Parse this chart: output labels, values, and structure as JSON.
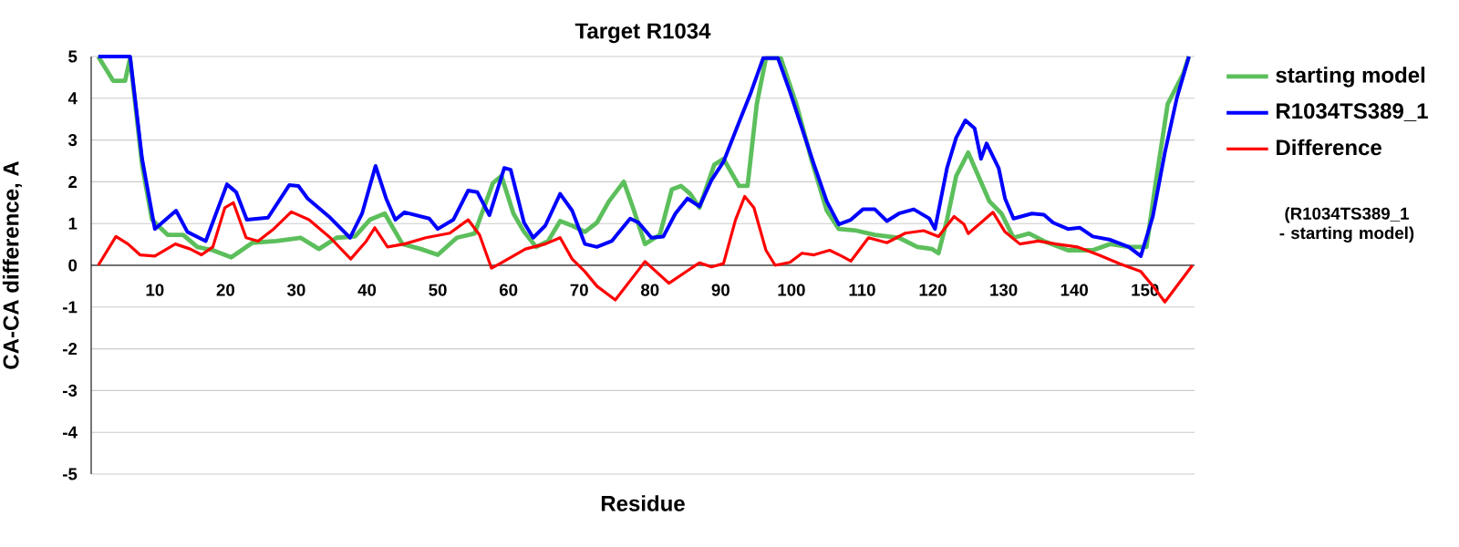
{
  "chart_data": {
    "type": "line",
    "title": "Target R1034",
    "xlabel": "Residue",
    "ylabel": "CA-CA difference, A",
    "xlim": [
      1,
      157
    ],
    "xticks": [
      10,
      20,
      30,
      40,
      50,
      60,
      70,
      80,
      90,
      100,
      110,
      120,
      130,
      140,
      150
    ],
    "ylim": [
      -5,
      5
    ],
    "yticks": [
      -5,
      -4,
      -3,
      -2,
      -1,
      0,
      1,
      2,
      3,
      4,
      5
    ],
    "grid": "y",
    "legend": "right",
    "annotations": [
      "(R1034TS389_1 - starting model)"
    ],
    "series": [
      {
        "name": "starting model",
        "color": "#5cbf5c",
        "x": [
          2,
          4.1,
          5.8,
          6.5,
          8.2,
          9.6,
          11.8,
          14,
          16,
          18.2,
          20.8,
          23.8,
          27.2,
          30.6,
          33.2,
          35.7,
          38.3,
          40.4,
          42.5,
          45,
          47.6,
          50,
          52.7,
          55.2,
          57.8,
          59,
          60.7,
          62.2,
          63.9,
          65.6,
          67.3,
          69,
          70.8,
          72.5,
          74.2,
          76.3,
          77.6,
          79.3,
          81.4,
          83.1,
          84.4,
          85.7,
          87,
          89.1,
          90.4,
          92.6,
          93.8,
          95.1,
          96.4,
          98.5,
          100.7,
          102.8,
          105,
          106.7,
          109.2,
          111.8,
          115.2,
          117.8,
          119.9,
          120.8,
          122,
          123.3,
          125,
          126.3,
          128,
          129.7,
          131.4,
          133.6,
          135.7,
          139.1,
          142.6,
          145.1,
          147.7,
          150.2,
          151.5,
          153.2,
          155.4,
          156.2
        ],
        "values": [
          5,
          4.42,
          4.42,
          4.96,
          2.4,
          1.09,
          0.73,
          0.73,
          0.44,
          0.36,
          0.19,
          0.54,
          0.58,
          0.66,
          0.39,
          0.66,
          0.69,
          1.09,
          1.24,
          0.51,
          0.39,
          0.25,
          0.66,
          0.76,
          1.97,
          2.14,
          1.24,
          0.8,
          0.44,
          0.58,
          1.06,
          0.95,
          0.8,
          1.02,
          1.53,
          2.0,
          1.38,
          0.51,
          0.73,
          1.82,
          1.9,
          1.71,
          1.38,
          2.41,
          2.55,
          1.9,
          1.9,
          3.86,
          4.96,
          4.96,
          3.86,
          2.55,
          1.31,
          0.87,
          0.83,
          0.73,
          0.66,
          0.44,
          0.39,
          0.29,
          1.09,
          2.14,
          2.7,
          2.19,
          1.53,
          1.24,
          0.66,
          0.76,
          0.58,
          0.36,
          0.36,
          0.51,
          0.44,
          0.44,
          1.97,
          3.86,
          4.59,
          5
        ]
      },
      {
        "name": "R1034TS389_1",
        "color": "#0000ff",
        "x": [
          2,
          6.5,
          8.2,
          10,
          13,
          14.6,
          17.2,
          20.2,
          21.5,
          23,
          26,
          29,
          30.3,
          31.6,
          34.6,
          37.6,
          39.3,
          41.2,
          42.7,
          44,
          45.3,
          48.8,
          50,
          52.2,
          54.3,
          55.6,
          57.3,
          59.4,
          60.3,
          62.2,
          63.5,
          65.2,
          67.3,
          69,
          70.8,
          72.5,
          74.6,
          77.2,
          78.4,
          80.2,
          81.9,
          83.6,
          85.3,
          87,
          88.7,
          90.4,
          92.6,
          94.3,
          96,
          98.1,
          99.8,
          101.5,
          103.2,
          105,
          106.7,
          108.4,
          110.1,
          111.8,
          113.5,
          115.2,
          117.3,
          119.5,
          120.3,
          122,
          123.3,
          124.6,
          125.9,
          126.8,
          127.6,
          129.3,
          130.2,
          131.4,
          134,
          135.7,
          137,
          139.1,
          140.8,
          142.6,
          145.1,
          147.7,
          149.4,
          151.1,
          152.8,
          154.5,
          156.2
        ],
        "values": [
          5,
          5,
          2.55,
          0.87,
          1.31,
          0.8,
          0.58,
          1.94,
          1.75,
          1.09,
          1.14,
          1.92,
          1.9,
          1.6,
          1.17,
          0.66,
          1.24,
          2.38,
          1.6,
          1.09,
          1.27,
          1.12,
          0.87,
          1.09,
          1.79,
          1.75,
          1.2,
          2.33,
          2.29,
          1.02,
          0.66,
          0.95,
          1.71,
          1.31,
          0.51,
          0.44,
          0.58,
          1.12,
          1.02,
          0.66,
          0.69,
          1.24,
          1.6,
          1.41,
          2.04,
          2.48,
          3.43,
          4.15,
          4.96,
          4.96,
          4.15,
          3.28,
          2.41,
          1.53,
          0.98,
          1.09,
          1.34,
          1.34,
          1.06,
          1.24,
          1.34,
          1.12,
          0.87,
          2.33,
          3.06,
          3.47,
          3.28,
          2.55,
          2.92,
          2.33,
          1.6,
          1.12,
          1.24,
          1.21,
          1.02,
          0.87,
          0.9,
          0.69,
          0.61,
          0.44,
          0.22,
          1.17,
          2.7,
          4.01,
          5
        ]
      },
      {
        "name": "Difference",
        "color": "#ff0000",
        "x": [
          2,
          4.5,
          6.2,
          7.9,
          10,
          12.9,
          15,
          16.6,
          18.2,
          19.9,
          21.1,
          22.9,
          24.6,
          26.8,
          29.3,
          31.8,
          34.8,
          37.7,
          39.9,
          41.1,
          42.9,
          45.3,
          48.3,
          51.7,
          54.3,
          55.9,
          57.6,
          58.8,
          62.4,
          65.2,
          67.3,
          69,
          70.8,
          72.5,
          75.1,
          79.3,
          82.7,
          85.3,
          87,
          88.7,
          90.4,
          92.1,
          93.4,
          94.7,
          96.4,
          97.7,
          99.8,
          101.5,
          103.2,
          105.4,
          107.1,
          108.4,
          110.9,
          113.5,
          116.1,
          118.7,
          120.8,
          123,
          124.4,
          125,
          126.8,
          128.5,
          130.2,
          132.3,
          134.9,
          137.4,
          140.4,
          143.4,
          146.4,
          149.4,
          151.5,
          152.8,
          156.7
        ],
        "values": [
          0,
          0.69,
          0.51,
          0.25,
          0.22,
          0.51,
          0.39,
          0.25,
          0.44,
          1.38,
          1.5,
          0.66,
          0.58,
          0.87,
          1.28,
          1.09,
          0.66,
          0.15,
          0.58,
          0.9,
          0.44,
          0.51,
          0.66,
          0.77,
          1.09,
          0.73,
          -0.07,
          0.04,
          0.39,
          0.51,
          0.66,
          0.15,
          -0.15,
          -0.5,
          -0.83,
          0.09,
          -0.43,
          -0.13,
          0.06,
          -0.04,
          0.04,
          1.09,
          1.65,
          1.38,
          0.36,
          0,
          0.07,
          0.29,
          0.25,
          0.36,
          0.22,
          0.1,
          0.66,
          0.54,
          0.77,
          0.83,
          0.69,
          1.17,
          0.98,
          0.76,
          1.02,
          1.27,
          0.8,
          0.51,
          0.58,
          0.51,
          0.44,
          0.25,
          0.04,
          -0.15,
          -0.58,
          -0.88,
          0
        ]
      }
    ]
  }
}
